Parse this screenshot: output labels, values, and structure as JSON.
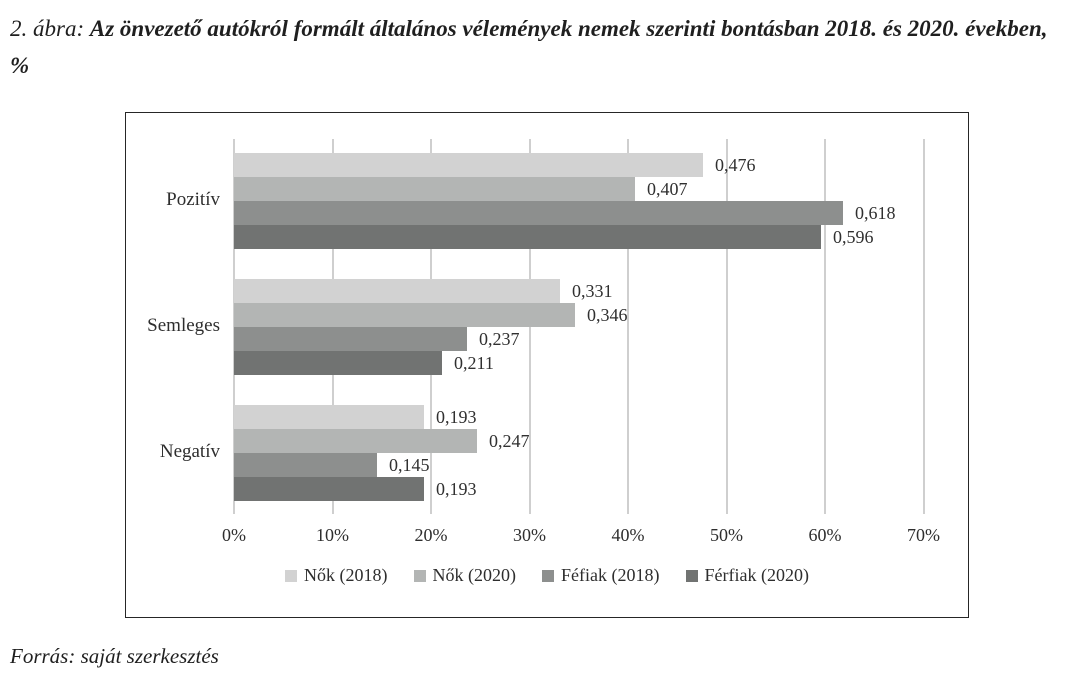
{
  "title": {
    "label": "2. ábra:",
    "text": "Az önvezető autókról formált általános vélemények nemek szerinti bontásban 2018. és 2020. években, %"
  },
  "source": "Forrás: saját szerkesztés",
  "chart_data": {
    "type": "bar",
    "orientation": "horizontal",
    "title": "Az önvezető autókról formált általános vélemények nemek szerinti bontásban 2018. és 2020. években, %",
    "categories": [
      "Pozitív",
      "Semleges",
      "Negatív"
    ],
    "category_ids": [
      "pozitiv",
      "semleges",
      "negativ"
    ],
    "series": [
      {
        "id": "nok-2018",
        "name": "Nők (2018)",
        "color": "#d2d2d2",
        "values": [
          0.476,
          0.331,
          0.193
        ]
      },
      {
        "id": "nok-2020",
        "name": "Nők (2020)",
        "color": "#b3b5b4",
        "values": [
          0.407,
          0.346,
          0.247
        ]
      },
      {
        "id": "fefiak-2018",
        "name": "Féfiak (2018)",
        "color": "#8d8f8e",
        "values": [
          0.618,
          0.237,
          0.145
        ]
      },
      {
        "id": "ferfiak-2020",
        "name": "Férfiak (2020)",
        "color": "#717372",
        "values": [
          0.596,
          0.211,
          0.193
        ]
      }
    ],
    "value_label_decimal_separator": ",",
    "x_ticks": [
      "0%",
      "10%",
      "20%",
      "30%",
      "40%",
      "50%",
      "60%",
      "70%"
    ],
    "xlim": [
      0,
      0.7
    ],
    "grid": true,
    "gridline_color": "#cfcfcf",
    "legend_position": "bottom"
  }
}
